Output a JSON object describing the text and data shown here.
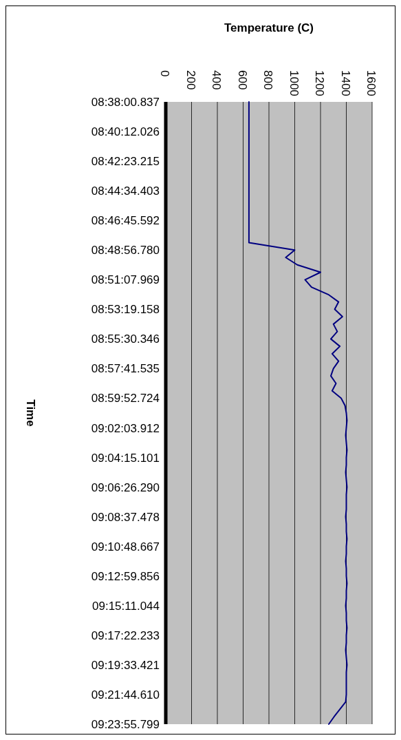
{
  "chart_data": {
    "type": "line",
    "orientation": "horizontal",
    "title": "Temperature (C)",
    "ylabel": "Time",
    "xlim": [
      0,
      1600
    ],
    "xticks": [
      0,
      200,
      400,
      600,
      800,
      1000,
      1200,
      1400,
      1600
    ],
    "grid": "x",
    "color": "#000080",
    "categories": [
      "08:38:00.837",
      null,
      null,
      null,
      "08:40:12.026",
      null,
      null,
      null,
      "08:42:23.215",
      null,
      null,
      null,
      "08:44:34.403",
      null,
      null,
      null,
      "08:46:45.592",
      null,
      null,
      null,
      "08:48:56.780",
      null,
      null,
      null,
      "08:51:07.969",
      null,
      null,
      null,
      "08:53:19.158",
      null,
      null,
      null,
      "08:55:30.346",
      null,
      null,
      null,
      "08:57:41.535",
      null,
      null,
      null,
      "08:59:52.724",
      null,
      null,
      null,
      "09:02:03.912",
      null,
      null,
      null,
      "09:04:15.101",
      null,
      null,
      null,
      "09:06:26.290",
      null,
      null,
      null,
      "09:08:37.478",
      null,
      null,
      null,
      "09:10:48.667",
      null,
      null,
      null,
      "09:12:59.856",
      null,
      null,
      null,
      "09:15:11.044",
      null,
      null,
      null,
      "09:17:22.233",
      null,
      null,
      null,
      "09:19:33.421",
      null,
      null,
      null,
      "09:21:44.610",
      null,
      null,
      null,
      "09:23:55.799"
    ],
    "values": [
      645,
      645,
      645,
      645,
      645,
      645,
      645,
      645,
      645,
      645,
      645,
      645,
      645,
      645,
      645,
      645,
      645,
      645,
      645,
      645,
      1000,
      930,
      1020,
      1200,
      1080,
      1130,
      1260,
      1340,
      1310,
      1370,
      1300,
      1330,
      1280,
      1350,
      1290,
      1340,
      1300,
      1280,
      1320,
      1290,
      1360,
      1390,
      1400,
      1405,
      1400,
      1395,
      1400,
      1405,
      1400,
      1400,
      1395,
      1400,
      1405,
      1400,
      1400,
      1400,
      1395,
      1400,
      1400,
      1405,
      1400,
      1400,
      1395,
      1400,
      1400,
      1405,
      1400,
      1400,
      1395,
      1400,
      1400,
      1405,
      1400,
      1400,
      1395,
      1400,
      1405,
      1400,
      1400,
      1400,
      1400,
      1395,
      1350,
      1305,
      1264
    ]
  }
}
